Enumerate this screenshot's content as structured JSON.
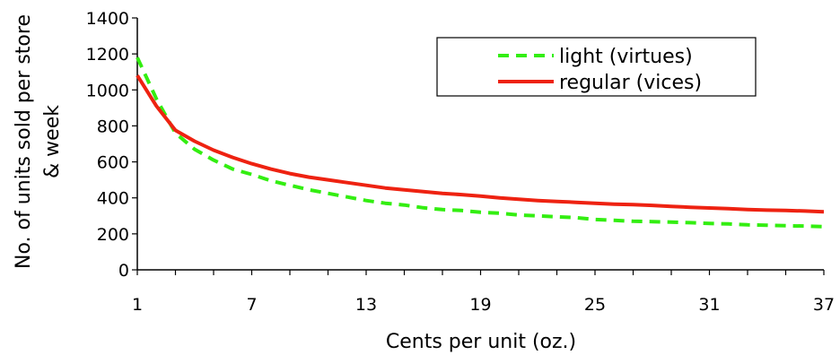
{
  "chart_data": {
    "type": "line",
    "title": "",
    "xlabel": "Cents per unit (oz.)",
    "ylabel_line1": "No. of units sold per store",
    "ylabel_line2": "& week",
    "xlim": [
      1,
      37
    ],
    "ylim": [
      0,
      1400
    ],
    "x_ticks": [
      1,
      7,
      13,
      19,
      25,
      31,
      37
    ],
    "y_ticks": [
      0,
      200,
      400,
      600,
      800,
      1000,
      1200,
      1400
    ],
    "grid": false,
    "legend_position": "top-right",
    "x": [
      1,
      2,
      3,
      4,
      5,
      6,
      7,
      8,
      9,
      10,
      11,
      12,
      13,
      14,
      15,
      16,
      17,
      18,
      19,
      20,
      21,
      22,
      23,
      24,
      25,
      26,
      27,
      28,
      29,
      30,
      31,
      32,
      33,
      34,
      35,
      36,
      37
    ],
    "series": [
      {
        "name": "light (virtues)",
        "color": "#33ee11",
        "dash": "dashed",
        "values": [
          1180,
          950,
          760,
          670,
          610,
          560,
          530,
          495,
          470,
          445,
          425,
          405,
          385,
          370,
          360,
          345,
          335,
          330,
          320,
          315,
          305,
          300,
          295,
          290,
          280,
          275,
          270,
          268,
          265,
          262,
          258,
          255,
          250,
          248,
          245,
          243,
          240
        ]
      },
      {
        "name": "regular (vices)",
        "color": "#ee2211",
        "dash": "solid",
        "values": [
          1080,
          910,
          775,
          715,
          665,
          625,
          590,
          560,
          535,
          515,
          500,
          485,
          470,
          455,
          445,
          435,
          425,
          418,
          410,
          400,
          392,
          385,
          380,
          375,
          370,
          365,
          362,
          358,
          352,
          348,
          344,
          340,
          335,
          332,
          330,
          327,
          323
        ]
      }
    ]
  }
}
